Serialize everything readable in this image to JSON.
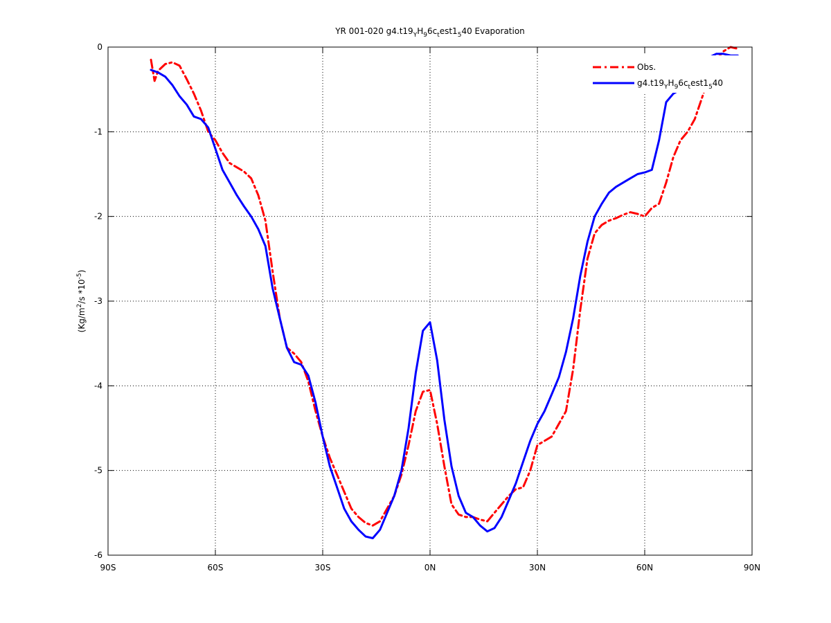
{
  "chart_data": {
    "type": "line",
    "title": "YR 001-020 g4.t19_YH_96c_test1_540 Evaporation",
    "title_parts": {
      "prefix": "YR 001-020 g4.t19",
      "sub1": "Y",
      "mid1": "H",
      "sub2": "9",
      "mid2": "6c",
      "sub3": "t",
      "mid3": "est1",
      "sub4": "5",
      "suffix": "40 Evaporation"
    },
    "ylabel": "(Kg/m^2/s *10^-5)",
    "ylabel_parts": {
      "a": "(Kg/m",
      "sup1": "2",
      "b": "/s *10",
      "sup2": "-5",
      "c": ")"
    },
    "xlabel": "",
    "xlim": [
      -90,
      90
    ],
    "ylim": [
      -6,
      0
    ],
    "grid": true,
    "grid_style": "dotted",
    "legend_position": "top-right",
    "xticks": [
      -90,
      -60,
      -30,
      0,
      30,
      60,
      90
    ],
    "xtick_labels": [
      "90S",
      "60S",
      "30S",
      "0N",
      "30N",
      "60N",
      "90N"
    ],
    "yticks": [
      0,
      -1,
      -2,
      -3,
      -4,
      -5,
      -6
    ],
    "ytick_labels": [
      "0",
      "-1",
      "-2",
      "-3",
      "-4",
      "-5",
      "-6"
    ],
    "series": [
      {
        "name": "Obs.",
        "color": "#ff0000",
        "style": "dash-dot",
        "x": [
          -78,
          -77,
          -76,
          -74,
          -72,
          -70,
          -68,
          -66,
          -64,
          -62,
          -60,
          -58,
          -56,
          -54,
          -52,
          -50,
          -48,
          -46,
          -44,
          -42,
          -40,
          -38,
          -36,
          -34,
          -32,
          -30,
          -28,
          -26,
          -24,
          -22,
          -20,
          -18,
          -16,
          -14,
          -12,
          -10,
          -8,
          -6,
          -4,
          -2,
          0,
          2,
          4,
          6,
          8,
          10,
          12,
          14,
          16,
          18,
          20,
          22,
          24,
          26,
          28,
          30,
          32,
          34,
          36,
          38,
          40,
          42,
          44,
          46,
          48,
          50,
          52,
          54,
          56,
          58,
          60,
          62,
          64,
          66,
          68,
          70,
          72,
          74,
          76,
          78,
          80,
          82,
          84,
          86
        ],
        "y": [
          -0.15,
          -0.4,
          -0.28,
          -0.2,
          -0.18,
          -0.22,
          -0.38,
          -0.55,
          -0.75,
          -1.0,
          -1.1,
          -1.25,
          -1.37,
          -1.42,
          -1.47,
          -1.55,
          -1.75,
          -2.05,
          -2.65,
          -3.2,
          -3.55,
          -3.62,
          -3.72,
          -3.95,
          -4.3,
          -4.6,
          -4.85,
          -5.05,
          -5.25,
          -5.45,
          -5.55,
          -5.62,
          -5.65,
          -5.6,
          -5.45,
          -5.3,
          -5.05,
          -4.7,
          -4.3,
          -4.07,
          -4.05,
          -4.45,
          -4.95,
          -5.4,
          -5.52,
          -5.55,
          -5.55,
          -5.58,
          -5.6,
          -5.5,
          -5.4,
          -5.3,
          -5.22,
          -5.2,
          -5.0,
          -4.7,
          -4.65,
          -4.6,
          -4.45,
          -4.3,
          -3.8,
          -3.1,
          -2.5,
          -2.2,
          -2.1,
          -2.05,
          -2.02,
          -1.98,
          -1.95,
          -1.97,
          -2.0,
          -1.9,
          -1.85,
          -1.6,
          -1.3,
          -1.1,
          -1.0,
          -0.85,
          -0.6,
          -0.35,
          -0.15,
          -0.05,
          0.0,
          -0.02
        ]
      },
      {
        "name": "g4.t19_YH_96c_test1_540",
        "color": "#0000ff",
        "style": "solid",
        "x": [
          -78,
          -76,
          -74,
          -72,
          -70,
          -68,
          -66,
          -64,
          -62,
          -60,
          -58,
          -56,
          -54,
          -52,
          -50,
          -48,
          -46,
          -44,
          -42,
          -40,
          -38,
          -36,
          -34,
          -32,
          -30,
          -28,
          -26,
          -24,
          -22,
          -20,
          -18,
          -16,
          -14,
          -12,
          -10,
          -8,
          -6,
          -4,
          -2,
          0,
          2,
          4,
          6,
          8,
          10,
          12,
          14,
          16,
          18,
          20,
          22,
          24,
          26,
          28,
          30,
          32,
          34,
          36,
          38,
          40,
          42,
          44,
          46,
          48,
          50,
          52,
          54,
          56,
          58,
          60,
          62,
          64,
          66,
          68,
          70,
          72,
          74,
          76,
          78,
          80,
          82,
          84,
          86
        ],
        "y": [
          -0.27,
          -0.3,
          -0.35,
          -0.45,
          -0.58,
          -0.68,
          -0.82,
          -0.85,
          -0.95,
          -1.2,
          -1.45,
          -1.6,
          -1.75,
          -1.88,
          -2.0,
          -2.15,
          -2.35,
          -2.85,
          -3.2,
          -3.55,
          -3.72,
          -3.75,
          -3.88,
          -4.2,
          -4.6,
          -4.95,
          -5.2,
          -5.45,
          -5.6,
          -5.7,
          -5.78,
          -5.8,
          -5.7,
          -5.5,
          -5.3,
          -5.0,
          -4.5,
          -3.85,
          -3.35,
          -3.25,
          -3.7,
          -4.4,
          -4.95,
          -5.3,
          -5.5,
          -5.55,
          -5.65,
          -5.72,
          -5.68,
          -5.55,
          -5.35,
          -5.15,
          -4.9,
          -4.65,
          -4.45,
          -4.3,
          -4.1,
          -3.9,
          -3.6,
          -3.2,
          -2.7,
          -2.3,
          -2.0,
          -1.85,
          -1.72,
          -1.65,
          -1.6,
          -1.55,
          -1.5,
          -1.48,
          -1.45,
          -1.1,
          -0.65,
          -0.55,
          -0.5,
          -0.4,
          -0.25,
          -0.18,
          -0.12,
          -0.08,
          -0.08,
          -0.1,
          -0.1
        ]
      }
    ]
  }
}
